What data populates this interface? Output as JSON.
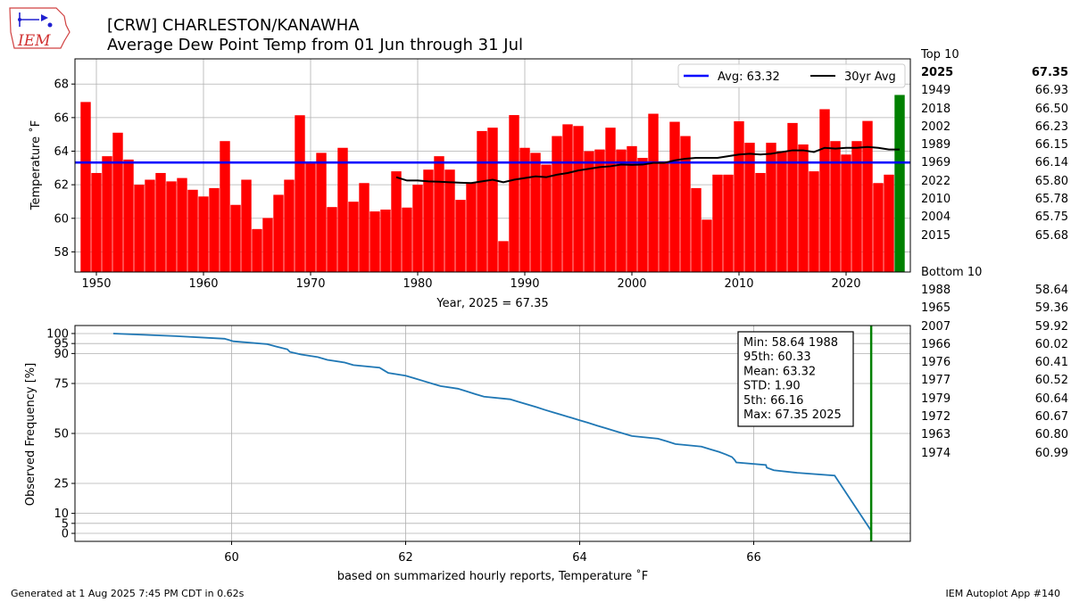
{
  "logo": {
    "text": "IEM"
  },
  "header": {
    "title": "[CRW] CHARLESTON/KANAWHA",
    "subtitle": "Average Dew Point Temp from 01 Jun through 31 Jul"
  },
  "rankings": {
    "top_label": "Top 10",
    "top": [
      {
        "year": "2025",
        "value": "67.35"
      },
      {
        "year": "1949",
        "value": "66.93"
      },
      {
        "year": "2018",
        "value": "66.50"
      },
      {
        "year": "2002",
        "value": "66.23"
      },
      {
        "year": "1989",
        "value": "66.15"
      },
      {
        "year": "1969",
        "value": "66.14"
      },
      {
        "year": "2022",
        "value": "65.80"
      },
      {
        "year": "2010",
        "value": "65.78"
      },
      {
        "year": "2004",
        "value": "65.75"
      },
      {
        "year": "2015",
        "value": "65.68"
      }
    ],
    "bottom_label": "Bottom 10",
    "bottom": [
      {
        "year": "1988",
        "value": "58.64"
      },
      {
        "year": "1965",
        "value": "59.36"
      },
      {
        "year": "2007",
        "value": "59.92"
      },
      {
        "year": "1966",
        "value": "60.02"
      },
      {
        "year": "1976",
        "value": "60.41"
      },
      {
        "year": "1977",
        "value": "60.52"
      },
      {
        "year": "1979",
        "value": "60.64"
      },
      {
        "year": "1972",
        "value": "60.67"
      },
      {
        "year": "1963",
        "value": "60.80"
      },
      {
        "year": "1974",
        "value": "60.99"
      }
    ]
  },
  "chart_data": [
    {
      "type": "bar",
      "ylabel": "Temperature $^\\circ$F",
      "ylabel_display": "Temperature ˚F",
      "xlabel": "Year, 2025 = 67.35",
      "xlim": [
        1948,
        2026
      ],
      "ylim": [
        56.8,
        69.5
      ],
      "xticks": [
        1950,
        1960,
        1970,
        1980,
        1990,
        2000,
        2010,
        2020
      ],
      "yticks": [
        58,
        60,
        62,
        64,
        66,
        68
      ],
      "grid": true,
      "legend_position": "top-right",
      "bar_color": "#ff0000",
      "highlight_color": "#008000",
      "highlight_year": 2025,
      "years": [
        1949,
        1950,
        1951,
        1952,
        1953,
        1954,
        1955,
        1956,
        1957,
        1958,
        1959,
        1960,
        1961,
        1962,
        1963,
        1964,
        1965,
        1966,
        1967,
        1968,
        1969,
        1970,
        1971,
        1972,
        1973,
        1974,
        1975,
        1976,
        1977,
        1978,
        1979,
        1980,
        1981,
        1982,
        1983,
        1984,
        1985,
        1986,
        1987,
        1988,
        1989,
        1990,
        1991,
        1992,
        1993,
        1994,
        1995,
        1996,
        1997,
        1998,
        1999,
        2000,
        2001,
        2002,
        2003,
        2004,
        2005,
        2006,
        2007,
        2008,
        2009,
        2010,
        2011,
        2012,
        2013,
        2014,
        2015,
        2016,
        2017,
        2018,
        2019,
        2020,
        2021,
        2022,
        2023,
        2024,
        2025
      ],
      "values": [
        66.93,
        62.7,
        63.7,
        65.1,
        63.5,
        62.0,
        62.3,
        62.7,
        62.2,
        62.4,
        61.7,
        61.3,
        61.8,
        64.6,
        60.8,
        62.3,
        59.36,
        60.02,
        61.4,
        62.3,
        66.14,
        63.3,
        63.9,
        60.67,
        64.2,
        60.99,
        62.1,
        60.41,
        60.52,
        62.8,
        60.64,
        62.0,
        62.9,
        63.7,
        62.9,
        61.1,
        62.1,
        65.2,
        65.4,
        58.64,
        66.15,
        64.2,
        63.9,
        63.2,
        64.9,
        65.6,
        65.5,
        64.0,
        64.1,
        65.4,
        64.1,
        64.3,
        63.6,
        66.23,
        63.4,
        65.75,
        64.9,
        61.8,
        59.92,
        62.6,
        62.6,
        65.78,
        64.5,
        62.7,
        64.5,
        64.0,
        65.68,
        64.4,
        62.8,
        66.5,
        64.6,
        63.8,
        64.6,
        65.8,
        62.1,
        62.6,
        67.35
      ],
      "series": [
        {
          "name": "Avg: 63.32",
          "type": "hline",
          "value": 63.32,
          "color": "#0000ff"
        },
        {
          "name": "30yr Avg",
          "type": "line",
          "color": "#000000",
          "x": [
            1978,
            1979,
            1980,
            1981,
            1982,
            1983,
            1984,
            1985,
            1986,
            1987,
            1988,
            1989,
            1990,
            1991,
            1992,
            1993,
            1994,
            1995,
            1996,
            1997,
            1998,
            1999,
            2000,
            2001,
            2002,
            2003,
            2004,
            2005,
            2006,
            2007,
            2008,
            2009,
            2010,
            2011,
            2012,
            2013,
            2014,
            2015,
            2016,
            2017,
            2018,
            2019,
            2020,
            2021,
            2022,
            2023,
            2024,
            2025
          ],
          "y": [
            62.45,
            62.25,
            62.25,
            62.2,
            62.18,
            62.15,
            62.12,
            62.1,
            62.2,
            62.3,
            62.15,
            62.3,
            62.4,
            62.5,
            62.45,
            62.6,
            62.7,
            62.85,
            62.95,
            63.05,
            63.1,
            63.2,
            63.18,
            63.2,
            63.3,
            63.3,
            63.45,
            63.55,
            63.6,
            63.6,
            63.6,
            63.7,
            63.8,
            63.85,
            63.8,
            63.85,
            63.95,
            64.05,
            64.05,
            63.95,
            64.2,
            64.15,
            64.2,
            64.2,
            64.25,
            64.2,
            64.1,
            64.1
          ]
        }
      ]
    },
    {
      "type": "line",
      "ylabel": "Observed Frequency [%]",
      "xlabel": "based on summarized hourly reports, Temperature $^\\circ$F",
      "xlabel_display": "based on summarized hourly reports, Temperature ˚F",
      "xlim": [
        58.2,
        67.8
      ],
      "ylim": [
        -4,
        104
      ],
      "xticks": [
        60,
        62,
        64,
        66
      ],
      "yticks": [
        0,
        5,
        10,
        25,
        50,
        75,
        90,
        95,
        100
      ],
      "grid": true,
      "line_color": "#1f77b4",
      "marker_line": {
        "x": 67.35,
        "color": "#008000"
      },
      "x": [
        58.64,
        59.36,
        59.92,
        60.02,
        60.41,
        60.52,
        60.64,
        60.67,
        60.8,
        60.99,
        61.1,
        61.3,
        61.4,
        61.7,
        61.75,
        61.8,
        62.0,
        62.1,
        62.2,
        62.3,
        62.4,
        62.6,
        62.7,
        62.8,
        62.9,
        63.2,
        63.3,
        63.4,
        63.5,
        63.6,
        63.7,
        63.8,
        63.9,
        64.0,
        64.1,
        64.2,
        64.3,
        64.4,
        64.5,
        64.6,
        64.9,
        65.0,
        65.1,
        65.4,
        65.5,
        65.6,
        65.68,
        65.75,
        65.78,
        65.8,
        66.14,
        66.15,
        66.23,
        66.5,
        66.93,
        67.35
      ],
      "y": [
        100,
        98.7,
        97.4,
        96.1,
        94.7,
        93.4,
        92.1,
        90.8,
        89.5,
        88.2,
        86.8,
        85.5,
        84.2,
        82.9,
        81.6,
        80.3,
        78.9,
        77.6,
        76.3,
        75.0,
        73.7,
        72.4,
        71.1,
        69.7,
        68.4,
        67.1,
        65.8,
        64.5,
        63.2,
        61.8,
        60.5,
        59.2,
        57.9,
        56.6,
        55.3,
        53.9,
        52.6,
        51.3,
        50.0,
        48.7,
        47.4,
        46.1,
        44.7,
        43.4,
        42.1,
        40.8,
        39.5,
        38.2,
        36.8,
        35.5,
        34.2,
        32.9,
        31.6,
        30.3,
        28.9,
        1.3
      ],
      "stats_box": [
        "Min: 58.64 1988",
        "95th: 60.33",
        "Mean: 63.32",
        "STD: 1.90",
        "5th: 66.16",
        "Max: 67.35 2025"
      ]
    }
  ],
  "footer": {
    "left": "Generated at 1 Aug 2025 7:45 PM CDT in 0.62s",
    "right": "IEM Autoplot App #140"
  }
}
